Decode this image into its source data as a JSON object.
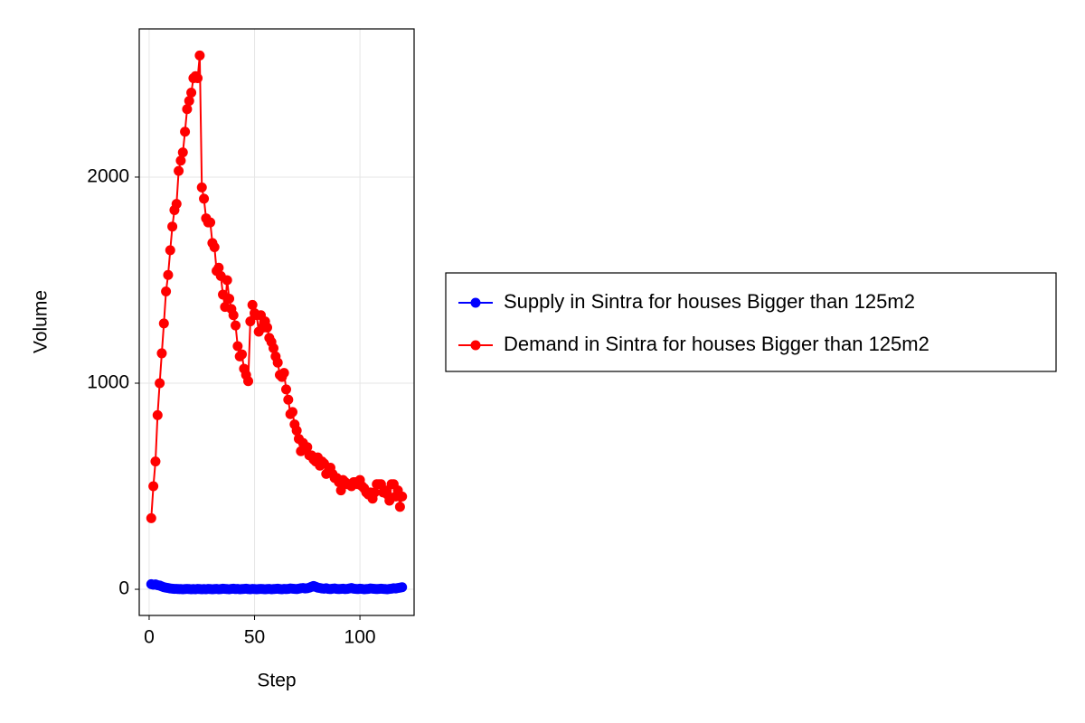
{
  "chart_data": {
    "type": "line",
    "xlabel": "Step",
    "ylabel": "Volume",
    "x": [
      1,
      2,
      3,
      4,
      5,
      6,
      7,
      8,
      9,
      10,
      11,
      12,
      13,
      14,
      15,
      16,
      17,
      18,
      19,
      20,
      21,
      22,
      23,
      24,
      25,
      26,
      27,
      28,
      29,
      30,
      31,
      32,
      33,
      34,
      35,
      36,
      37,
      38,
      39,
      40,
      41,
      42,
      43,
      44,
      45,
      46,
      47,
      48,
      49,
      50,
      51,
      52,
      53,
      54,
      55,
      56,
      57,
      58,
      59,
      60,
      61,
      62,
      63,
      64,
      65,
      66,
      67,
      68,
      69,
      70,
      71,
      72,
      73,
      74,
      75,
      76,
      77,
      78,
      79,
      80,
      81,
      82,
      83,
      84,
      85,
      86,
      87,
      88,
      89,
      90,
      91,
      92,
      93,
      94,
      95,
      96,
      97,
      98,
      99,
      100,
      101,
      102,
      103,
      104,
      105,
      106,
      107,
      108,
      109,
      110,
      111,
      112,
      113,
      114,
      115,
      116,
      117,
      118,
      119,
      120
    ],
    "series": [
      {
        "name": "Supply in Sintra for houses Bigger than 125m2",
        "color": "#0000ff",
        "values": [
          25,
          22,
          24,
          20,
          18,
          14,
          10,
          8,
          6,
          4,
          3,
          2,
          2,
          1,
          1,
          0,
          1,
          2,
          1,
          0,
          1,
          0,
          2,
          1,
          0,
          1,
          0,
          2,
          1,
          0,
          1,
          2,
          0,
          1,
          3,
          2,
          1,
          0,
          2,
          3,
          1,
          2,
          0,
          1,
          2,
          3,
          1,
          0,
          2,
          1,
          0,
          1,
          2,
          1,
          0,
          1,
          2,
          0,
          1,
          2,
          3,
          1,
          0,
          2,
          1,
          2,
          4,
          3,
          2,
          1,
          3,
          5,
          6,
          4,
          5,
          8,
          12,
          16,
          12,
          8,
          6,
          4,
          3,
          5,
          2,
          1,
          3,
          4,
          2,
          1,
          2,
          3,
          1,
          2,
          4,
          6,
          3,
          2,
          1,
          3,
          2,
          0,
          1,
          2,
          4,
          3,
          2,
          1,
          2,
          3,
          2,
          1,
          0,
          2,
          3,
          5,
          4,
          6,
          8,
          10
        ]
      },
      {
        "name": "Demand in Sintra for houses Bigger than 125m2",
        "color": "#ff0000",
        "values": [
          345,
          500,
          620,
          845,
          1000,
          1145,
          1290,
          1445,
          1525,
          1645,
          1760,
          1840,
          1870,
          2030,
          2080,
          2120,
          2220,
          2330,
          2370,
          2410,
          2480,
          2490,
          2480,
          2590,
          1950,
          1895,
          1800,
          1780,
          1780,
          1680,
          1660,
          1545,
          1560,
          1520,
          1430,
          1370,
          1500,
          1410,
          1360,
          1330,
          1280,
          1180,
          1130,
          1140,
          1070,
          1040,
          1010,
          1300,
          1380,
          1340,
          1330,
          1250,
          1330,
          1270,
          1300,
          1270,
          1220,
          1200,
          1170,
          1130,
          1100,
          1040,
          1030,
          1050,
          970,
          920,
          850,
          860,
          800,
          770,
          730,
          670,
          710,
          680,
          690,
          650,
          650,
          630,
          620,
          640,
          600,
          620,
          610,
          560,
          570,
          590,
          560,
          540,
          540,
          520,
          480,
          530,
          520,
          510,
          510,
          500,
          520,
          520,
          510,
          530,
          500,
          490,
          470,
          460,
          470,
          440,
          470,
          510,
          510,
          510,
          470,
          480,
          460,
          430,
          510,
          510,
          450,
          480,
          400,
          450
        ]
      }
    ],
    "xlim": [
      -4.7,
      125.7
    ],
    "ylim": [
      -127,
      2719
    ],
    "xticks": [
      0,
      50,
      100
    ],
    "yticks": [
      0,
      1000,
      2000
    ],
    "grid": true,
    "legend": "right"
  }
}
